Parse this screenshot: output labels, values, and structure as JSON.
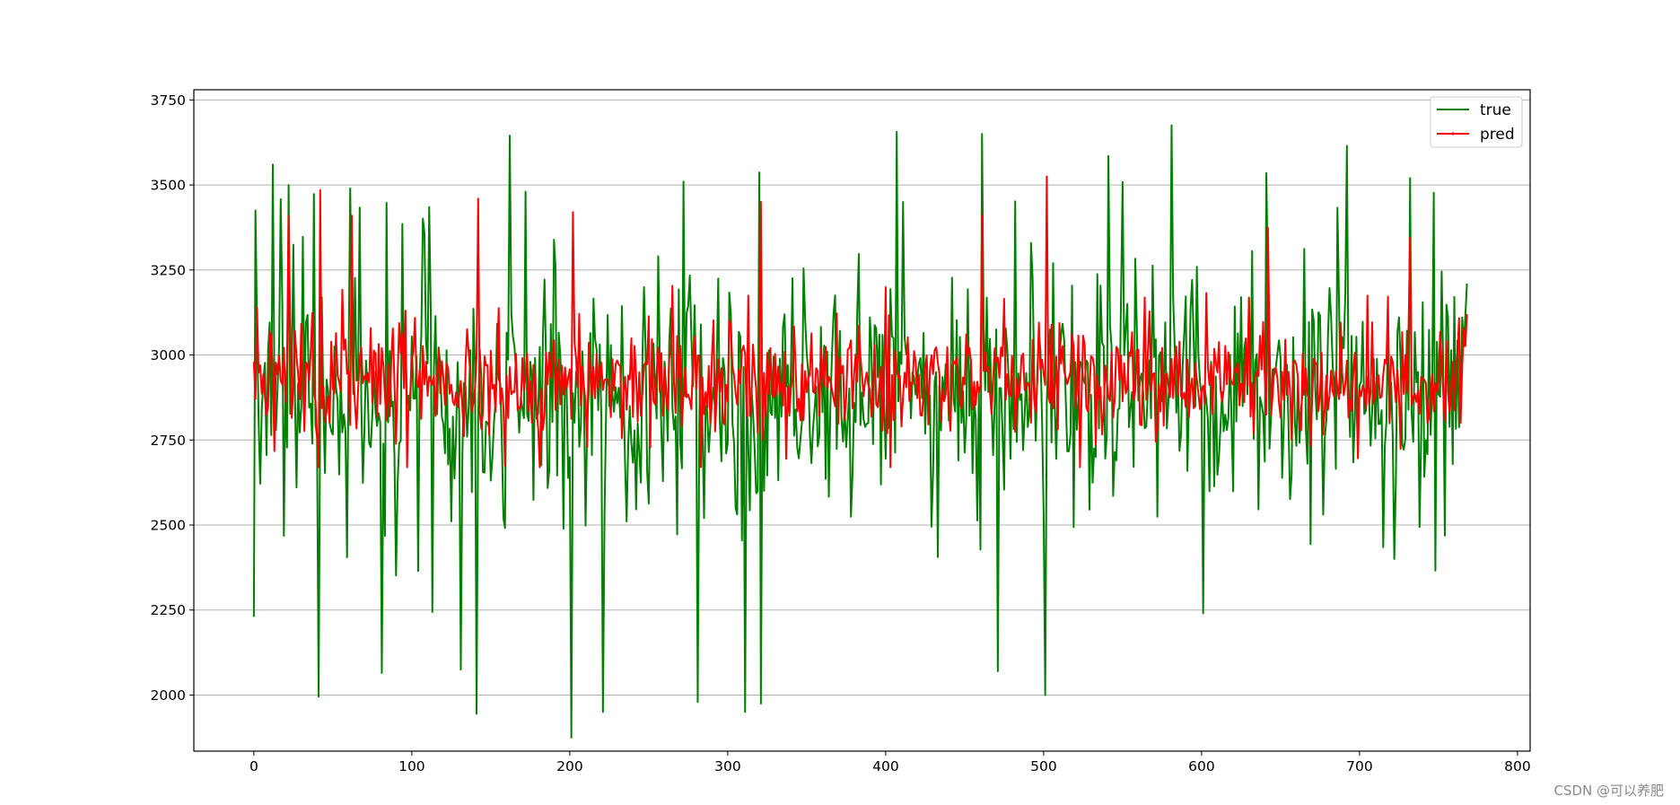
{
  "chart_data": {
    "type": "line",
    "title": "",
    "xlabel": "",
    "ylabel": "",
    "xlim": [
      -38,
      808
    ],
    "ylim": [
      1835,
      3780
    ],
    "xticks": [
      0,
      100,
      200,
      300,
      400,
      500,
      600,
      700,
      800
    ],
    "yticks": [
      2000,
      2250,
      2500,
      2750,
      3000,
      3250,
      3500,
      3750
    ],
    "grid": "horizontal",
    "legend_position": "top-right",
    "n_points": 769,
    "series": [
      {
        "name": "true",
        "color": "#008000",
        "mean": 2880,
        "min": 1875,
        "max": 3675,
        "notable_points": [
          [
            0,
            2230
          ],
          [
            1,
            3425
          ],
          [
            12,
            3560
          ],
          [
            22,
            3500
          ],
          [
            41,
            1995
          ],
          [
            61,
            3490
          ],
          [
            81,
            2065
          ],
          [
            111,
            3435
          ],
          [
            131,
            2075
          ],
          [
            141,
            1945
          ],
          [
            162,
            3645
          ],
          [
            172,
            3480
          ],
          [
            201,
            1875
          ],
          [
            221,
            1950
          ],
          [
            272,
            3510
          ],
          [
            281,
            1980
          ],
          [
            311,
            1950
          ],
          [
            321,
            1975
          ],
          [
            411,
            3450
          ],
          [
            461,
            3650
          ],
          [
            471,
            2070
          ],
          [
            501,
            2000
          ],
          [
            541,
            3585
          ],
          [
            581,
            3675
          ],
          [
            601,
            2240
          ],
          [
            641,
            3535
          ],
          [
            692,
            3615
          ],
          [
            722,
            2400
          ],
          [
            732,
            3520
          ],
          [
            768,
            3210
          ]
        ]
      },
      {
        "name": "pred",
        "color": "#ff0000",
        "mean": 2930,
        "min": 2670,
        "max": 3525,
        "notable_points": [
          [
            0,
            2980
          ],
          [
            2,
            3140
          ],
          [
            22,
            3410
          ],
          [
            41,
            2670
          ],
          [
            42,
            3485
          ],
          [
            62,
            3410
          ],
          [
            142,
            3460
          ],
          [
            202,
            3420
          ],
          [
            321,
            3450
          ],
          [
            461,
            3410
          ],
          [
            502,
            3525
          ],
          [
            642,
            3375
          ],
          [
            732,
            3345
          ],
          [
            768,
            3120
          ]
        ]
      }
    ]
  },
  "watermark": "CSDN @可以养肥"
}
